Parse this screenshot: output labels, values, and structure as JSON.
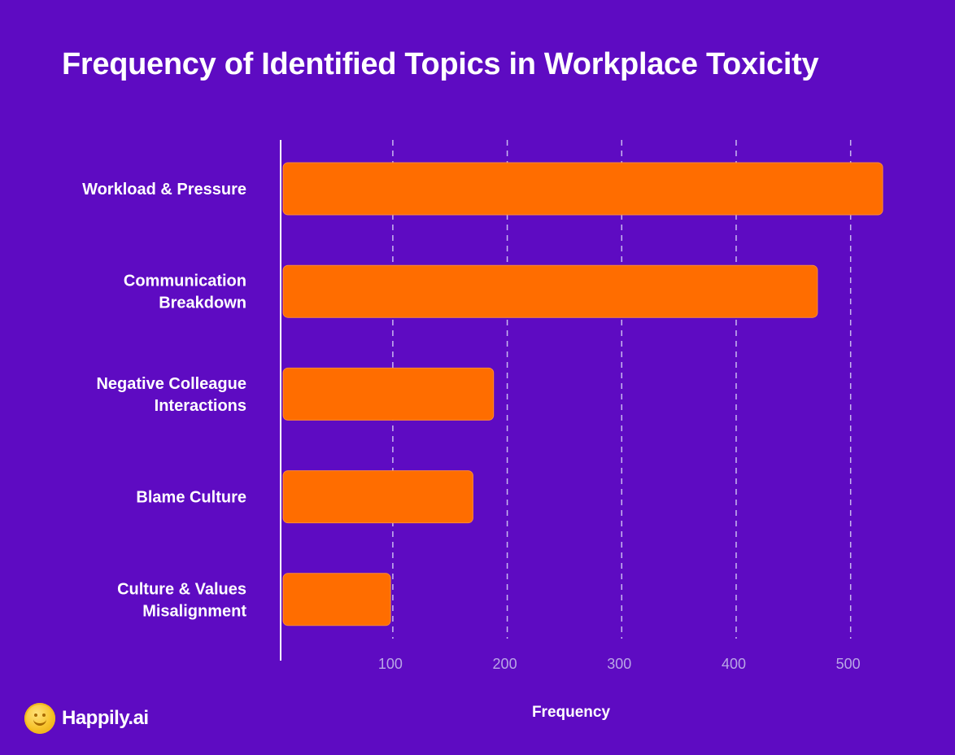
{
  "chart_data": {
    "type": "bar",
    "orientation": "horizontal",
    "title": "Frequency of Identified Topics in Workplace Toxicity",
    "xlabel": "Frequency",
    "ylabel": "",
    "categories": [
      "Workload & Pressure",
      "Communication Breakdown",
      "Negative Colleague Interactions",
      "Blame Culture",
      "Culture & Values Misalignment"
    ],
    "category_lines": [
      [
        "Workload & Pressure"
      ],
      [
        "Communication",
        "Breakdown"
      ],
      [
        "Negative Colleague",
        "Interactions"
      ],
      [
        "Blame Culture"
      ],
      [
        "Culture & Values",
        "Misalignment"
      ]
    ],
    "values": [
      528,
      471,
      188,
      170,
      98
    ],
    "x_ticks": [
      100,
      200,
      300,
      400,
      500
    ],
    "xlim": [
      2,
      545
    ],
    "grid": "vertical-dashed",
    "bar_color": "#ff6d00",
    "background_color": "#5e0bc2"
  },
  "brand": {
    "name": "Happily.ai",
    "logo_icon": "smiley-face-icon"
  }
}
